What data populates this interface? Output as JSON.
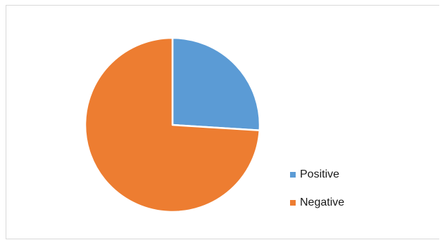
{
  "chart_data": {
    "type": "pie",
    "title": "",
    "start_angle_deg": 0,
    "direction": "clockwise",
    "slices": [
      {
        "name": "Positive",
        "value": 26,
        "color": "#5b9bd5"
      },
      {
        "name": "Negative",
        "value": 74,
        "color": "#ed7d31"
      }
    ],
    "legend": {
      "placement": "bottom-right"
    }
  }
}
